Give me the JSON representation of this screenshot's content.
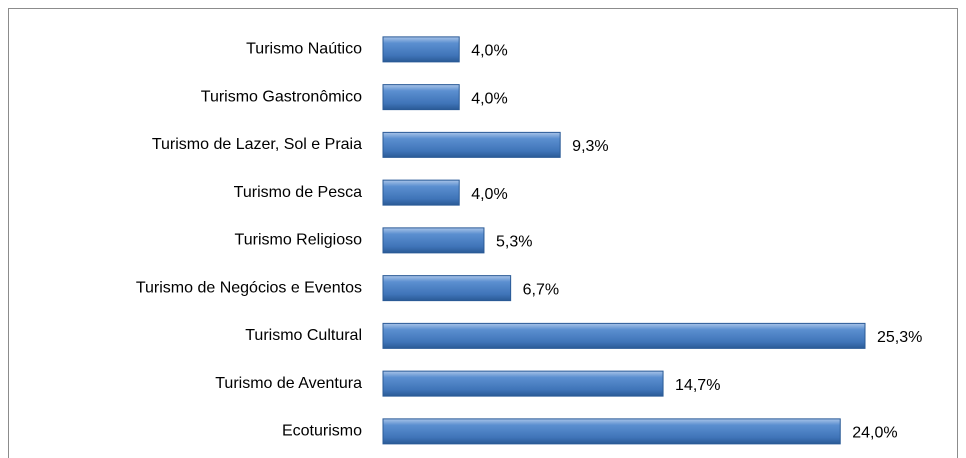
{
  "chart_data": {
    "type": "bar",
    "orientation": "horizontal",
    "categories": [
      "Turismo Naútico",
      "Turismo Gastronômico",
      "Turismo de Lazer, Sol e Praia",
      "Turismo de Pesca",
      "Turismo Religioso",
      "Turismo de Negócios e Eventos",
      "Turismo Cultural",
      "Turismo de Aventura",
      "Ecoturismo"
    ],
    "values": [
      4.0,
      4.0,
      9.3,
      4.0,
      5.3,
      6.7,
      25.3,
      14.7,
      24.0
    ],
    "value_labels": [
      "4,0%",
      "4,0%",
      "9,3%",
      "4,0%",
      "5,3%",
      "6,7%",
      "25,3%",
      "14,7%",
      "24,0%"
    ],
    "color": "#4f81bd"
  }
}
